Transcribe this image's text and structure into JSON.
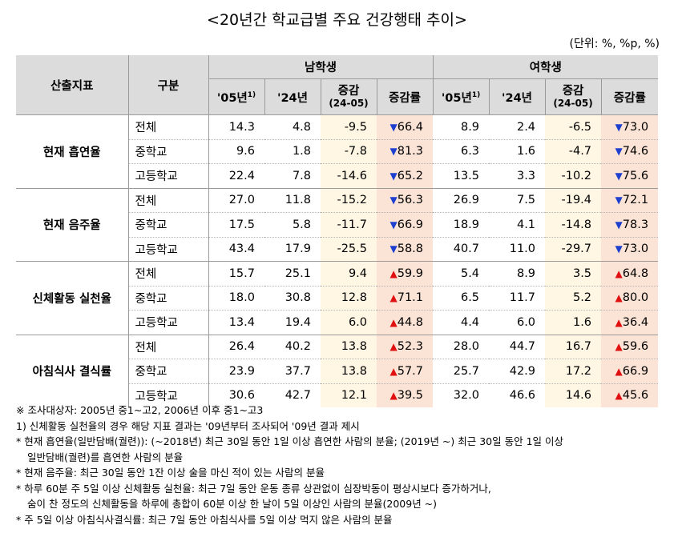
{
  "title": "<20년간 학교급별 주요 건강행태 추이>",
  "unit": "(단위: %, %p, %)",
  "headers": {
    "indicator": "산출지표",
    "category": "구분",
    "male": "남학생",
    "female": "여학생",
    "y05": "'05년",
    "y05_sup": "1)",
    "y24": "'24년",
    "change": "증감",
    "change_sub": "(24-05)",
    "rate": "증감률"
  },
  "groups": [
    {
      "name": "현재 흡연율",
      "rows": [
        {
          "cat": "전체",
          "m05": "14.3",
          "m24": "4.8",
          "mchg": "-9.5",
          "mdir": "down",
          "mrate": "66.4",
          "f05": "8.9",
          "f24": "2.4",
          "fchg": "-6.5",
          "fdir": "down",
          "frate": "73.0"
        },
        {
          "cat": "중학교",
          "m05": "9.6",
          "m24": "1.8",
          "mchg": "-7.8",
          "mdir": "down",
          "mrate": "81.3",
          "f05": "6.3",
          "f24": "1.6",
          "fchg": "-4.7",
          "fdir": "down",
          "frate": "74.6"
        },
        {
          "cat": "고등학교",
          "m05": "22.4",
          "m24": "7.8",
          "mchg": "-14.6",
          "mdir": "down",
          "mrate": "65.2",
          "f05": "13.5",
          "f24": "3.3",
          "fchg": "-10.2",
          "fdir": "down",
          "frate": "75.6"
        }
      ]
    },
    {
      "name": "현재 음주율",
      "rows": [
        {
          "cat": "전체",
          "m05": "27.0",
          "m24": "11.8",
          "mchg": "-15.2",
          "mdir": "down",
          "mrate": "56.3",
          "f05": "26.9",
          "f24": "7.5",
          "fchg": "-19.4",
          "fdir": "down",
          "frate": "72.1"
        },
        {
          "cat": "중학교",
          "m05": "17.5",
          "m24": "5.8",
          "mchg": "-11.7",
          "mdir": "down",
          "mrate": "66.9",
          "f05": "18.9",
          "f24": "4.1",
          "fchg": "-14.8",
          "fdir": "down",
          "frate": "78.3"
        },
        {
          "cat": "고등학교",
          "m05": "43.4",
          "m24": "17.9",
          "mchg": "-25.5",
          "mdir": "down",
          "mrate": "58.8",
          "f05": "40.7",
          "f24": "11.0",
          "fchg": "-29.7",
          "fdir": "down",
          "frate": "73.0"
        }
      ]
    },
    {
      "name": "신체활동 실천율",
      "rows": [
        {
          "cat": "전체",
          "m05": "15.7",
          "m24": "25.1",
          "mchg": "9.4",
          "mdir": "up",
          "mrate": "59.9",
          "f05": "5.4",
          "f24": "8.9",
          "fchg": "3.5",
          "fdir": "up",
          "frate": "64.8"
        },
        {
          "cat": "중학교",
          "m05": "18.0",
          "m24": "30.8",
          "mchg": "12.8",
          "mdir": "up",
          "mrate": "71.1",
          "f05": "6.5",
          "f24": "11.7",
          "fchg": "5.2",
          "fdir": "up",
          "frate": "80.0"
        },
        {
          "cat": "고등학교",
          "m05": "13.4",
          "m24": "19.4",
          "mchg": "6.0",
          "mdir": "up",
          "mrate": "44.8",
          "f05": "4.4",
          "f24": "6.0",
          "fchg": "1.6",
          "fdir": "up",
          "frate": "36.4"
        }
      ]
    },
    {
      "name": "아침식사 결식률",
      "rows": [
        {
          "cat": "전체",
          "m05": "26.4",
          "m24": "40.2",
          "mchg": "13.8",
          "mdir": "up",
          "mrate": "52.3",
          "f05": "28.0",
          "f24": "44.7",
          "fchg": "16.7",
          "fdir": "up",
          "frate": "59.6"
        },
        {
          "cat": "중학교",
          "m05": "23.9",
          "m24": "37.7",
          "mchg": "13.8",
          "mdir": "up",
          "mrate": "57.7",
          "f05": "25.7",
          "f24": "42.9",
          "fchg": "17.2",
          "fdir": "up",
          "frate": "66.9"
        },
        {
          "cat": "고등학교",
          "m05": "30.6",
          "m24": "42.7",
          "mchg": "12.1",
          "mdir": "up",
          "mrate": "39.5",
          "f05": "32.0",
          "f24": "46.6",
          "fchg": "14.6",
          "fdir": "up",
          "frate": "45.6"
        }
      ]
    }
  ],
  "notes": [
    "※ 조사대상자: 2005년 중1~고2, 2006년 이후 중1~고3",
    "1) 신체활동 실천율의 경우 해당 지표 결과는 '09년부터 조사되어 '09년 결과 제시",
    "* 현재 흡연율(일반담배(궐련)): (~2018년) 최근 30일 동안 1일 이상 흡연한 사람의 분율; (2019년 ~) 최근 30일 동안 1일 이상",
    "일반담배(궐련)를 흡연한 사람의 분율",
    "* 현재 음주율: 최근 30일 동안 1잔 이상 술을 마신 적이 있는 사람의 분율",
    "* 하루 60분 주 5일 이상 신체활동 실천율: 최근 7일 동안 운동 종류 상관없이 심장박동이 평상시보다 증가하거나,",
    "숨이 찬 정도의 신체활동을 하루에 총합이 60분 이상 한 날이 5일 이상인 사람의 분율(2009년 ~)",
    "* 주 5일 이상 아침식사결식률: 최근 7일 동안 아침식사를 5일 이상 먹지 않은 사람의 분율"
  ],
  "colors": {
    "header_bg": "#dcdcdc",
    "change_bg": "#fff7e3",
    "rate_bg": "#fbe4d6",
    "down": "#1f3fcf",
    "up": "#e01010"
  },
  "icons": {
    "down": "down-triangle-icon",
    "up": "up-triangle-icon"
  }
}
